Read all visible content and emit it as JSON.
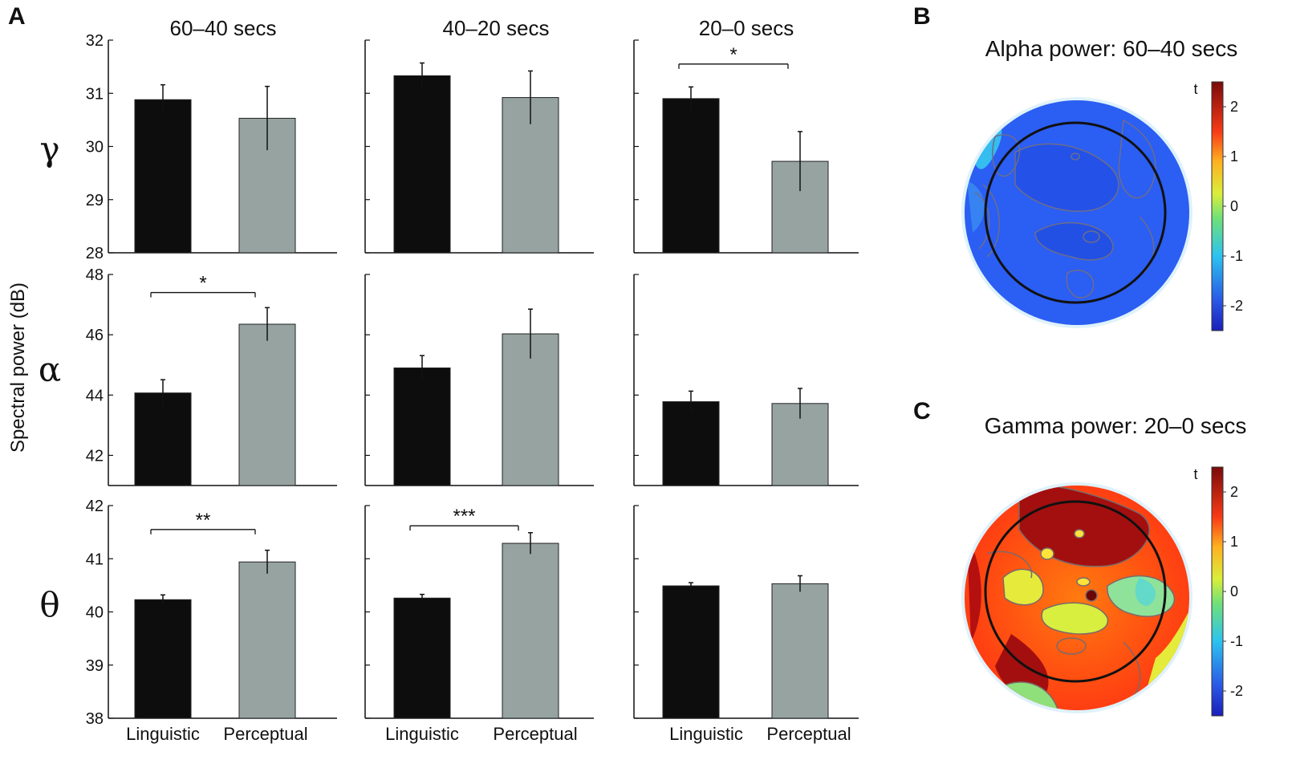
{
  "figure": {
    "panel_letters": [
      "A",
      "B",
      "C"
    ],
    "ylabel": "Spectral power (dB)",
    "column_titles": [
      "60–40 secs",
      "40–20 secs",
      "20–0 secs"
    ],
    "categories": [
      "Linguistic",
      "Perceptual"
    ],
    "band_labels": [
      "γ",
      "α",
      "θ"
    ],
    "colors": {
      "linguistic": "#0d0d0d",
      "perceptual": "#96a3a1",
      "axis": "#111111"
    }
  },
  "chart_data": [
    {
      "type": "bar",
      "title": "60–40 secs",
      "band": "gamma",
      "categories": [
        "Linguistic",
        "Perceptual"
      ],
      "values": [
        30.88,
        30.53
      ],
      "errors": [
        0.28,
        0.6
      ],
      "ylim": [
        28,
        32
      ],
      "yticks": [
        28,
        29,
        30,
        31,
        32
      ],
      "show_yticks": true,
      "significance": null
    },
    {
      "type": "bar",
      "title": "40–20 secs",
      "band": "gamma",
      "categories": [
        "Linguistic",
        "Perceptual"
      ],
      "values": [
        31.33,
        30.92
      ],
      "errors": [
        0.24,
        0.5
      ],
      "ylim": [
        28,
        32
      ],
      "yticks": [
        28,
        29,
        30,
        31,
        32
      ],
      "show_yticks": false,
      "significance": null
    },
    {
      "type": "bar",
      "title": "20–0 secs",
      "band": "gamma",
      "categories": [
        "Linguistic",
        "Perceptual"
      ],
      "values": [
        30.9,
        29.72
      ],
      "errors": [
        0.22,
        0.56
      ],
      "ylim": [
        28,
        32
      ],
      "yticks": [
        28,
        29,
        30,
        31,
        32
      ],
      "show_yticks": false,
      "significance": {
        "label": "*",
        "level": 31.55
      }
    },
    {
      "type": "bar",
      "band": "alpha",
      "categories": [
        "Linguistic",
        "Perceptual"
      ],
      "values": [
        44.07,
        46.35
      ],
      "errors": [
        0.44,
        0.55
      ],
      "ylim": [
        41,
        48
      ],
      "yticks": [
        42,
        44,
        46,
        48
      ],
      "show_yticks": true,
      "significance": {
        "label": "*",
        "level": 47.4
      }
    },
    {
      "type": "bar",
      "band": "alpha",
      "categories": [
        "Linguistic",
        "Perceptual"
      ],
      "values": [
        44.9,
        46.03
      ],
      "errors": [
        0.41,
        0.82
      ],
      "ylim": [
        41,
        48
      ],
      "yticks": [
        42,
        44,
        46,
        48
      ],
      "show_yticks": false,
      "significance": null
    },
    {
      "type": "bar",
      "band": "alpha",
      "categories": [
        "Linguistic",
        "Perceptual"
      ],
      "values": [
        43.78,
        43.72
      ],
      "errors": [
        0.35,
        0.5
      ],
      "ylim": [
        41,
        48
      ],
      "yticks": [
        42,
        44,
        46,
        48
      ],
      "show_yticks": false,
      "significance": null
    },
    {
      "type": "bar",
      "band": "theta",
      "categories": [
        "Linguistic",
        "Perceptual"
      ],
      "values": [
        40.23,
        40.94
      ],
      "errors": [
        0.09,
        0.22
      ],
      "ylim": [
        38,
        42
      ],
      "yticks": [
        38,
        39,
        40,
        41,
        42
      ],
      "show_yticks": true,
      "significance": {
        "label": "**",
        "level": 41.55
      }
    },
    {
      "type": "bar",
      "band": "theta",
      "categories": [
        "Linguistic",
        "Perceptual"
      ],
      "values": [
        40.26,
        41.29
      ],
      "errors": [
        0.07,
        0.2
      ],
      "ylim": [
        38,
        42
      ],
      "yticks": [
        38,
        39,
        40,
        41,
        42
      ],
      "show_yticks": false,
      "significance": {
        "label": "***",
        "level": 41.62
      }
    },
    {
      "type": "bar",
      "band": "theta",
      "categories": [
        "Linguistic",
        "Perceptual"
      ],
      "values": [
        40.49,
        40.53
      ],
      "errors": [
        0.06,
        0.15
      ],
      "ylim": [
        38,
        42
      ],
      "yticks": [
        38,
        39,
        40,
        41,
        42
      ],
      "show_yticks": false,
      "significance": null
    }
  ],
  "topomaps": [
    {
      "letter": "B",
      "title": "Alpha power: 60–40 secs",
      "colorbar_label": "t",
      "colorbar_ticks": [
        2,
        1,
        0,
        -1,
        -2
      ],
      "clim": [
        -2.5,
        2.5
      ]
    },
    {
      "letter": "C",
      "title": "Gamma power: 20–0 secs",
      "colorbar_label": "t",
      "colorbar_ticks": [
        2,
        1,
        0,
        -1,
        -2
      ],
      "clim": [
        -2.5,
        2.5
      ]
    }
  ]
}
